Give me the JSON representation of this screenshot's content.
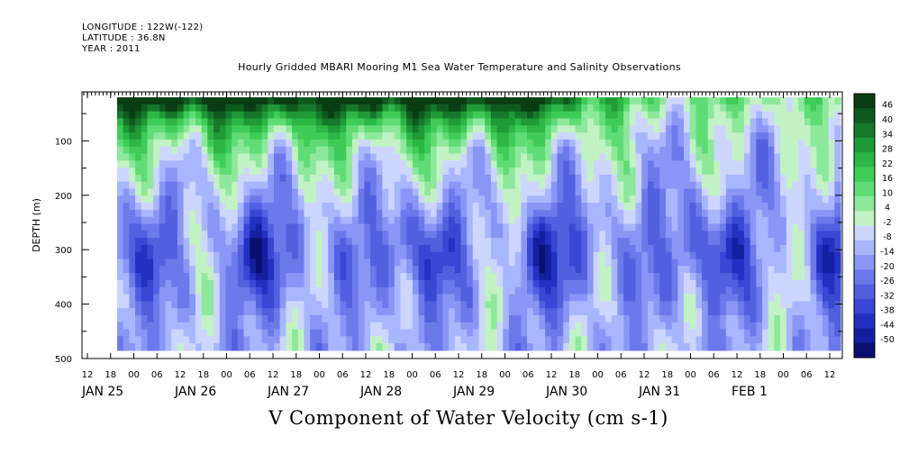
{
  "header": {
    "longitude": "LONGITUDE : 122W(-122)",
    "latitude": "LATITUDE : 36.8N",
    "year": "YEAR : 2011"
  },
  "chart_data": {
    "type": "heatmap",
    "title": "Hourly Gridded MBARI Mooring M1 Sea Water Temperature and Salinity Observations",
    "xlabel": "V Component of Water Velocity (cm s-1)",
    "ylabel": "DEPTH (m)",
    "ylim": [
      500,
      10
    ],
    "y_ticks": [
      100,
      200,
      300,
      400,
      500
    ],
    "x_hour_ticks": [
      "12",
      "18",
      "00",
      "06",
      "12",
      "18",
      "00",
      "06",
      "12",
      "18",
      "00",
      "06",
      "12",
      "18",
      "00",
      "06",
      "12",
      "18",
      "00",
      "06",
      "12",
      "18",
      "00",
      "06",
      "12",
      "18",
      "00",
      "06",
      "12",
      "18",
      "00",
      "06",
      "12"
    ],
    "x_date_labels": [
      "JAN 25",
      "JAN 26",
      "JAN 27",
      "JAN 28",
      "JAN 29",
      "JAN 30",
      "JAN 31",
      "FEB  1"
    ],
    "colorbar": {
      "labels": [
        "46",
        "40",
        "34",
        "28",
        "22",
        "16",
        "10",
        "4",
        "-2",
        "-8",
        "-14",
        "-20",
        "-26",
        "-32",
        "-38",
        "-44",
        "-50"
      ],
      "colors": [
        "#0b3d14",
        "#0f5a1e",
        "#16782a",
        "#1f9a36",
        "#2db646",
        "#3fcb58",
        "#5fdc76",
        "#8ee89c",
        "#c2f2c4",
        "#cdd6ff",
        "#a8b6ff",
        "#8996f5",
        "#6c79ea",
        "#5260e0",
        "#3a46d4",
        "#2430c2",
        "#141fa0",
        "#0a1070"
      ]
    },
    "colorscale_min": -50,
    "colorscale_max": 50,
    "data_extent": {
      "time_start": "JAN 25 18:00",
      "time_end": "FEB 1 12:00",
      "depth_start": 20,
      "depth_end": 485
    },
    "note_pattern": "Positive (green) V near surface 20-80 m, mostly Jan 25-29; negative (blue) V at depth with strongest values near 300-400 m around Jan 25-26 and Jan 30."
  }
}
